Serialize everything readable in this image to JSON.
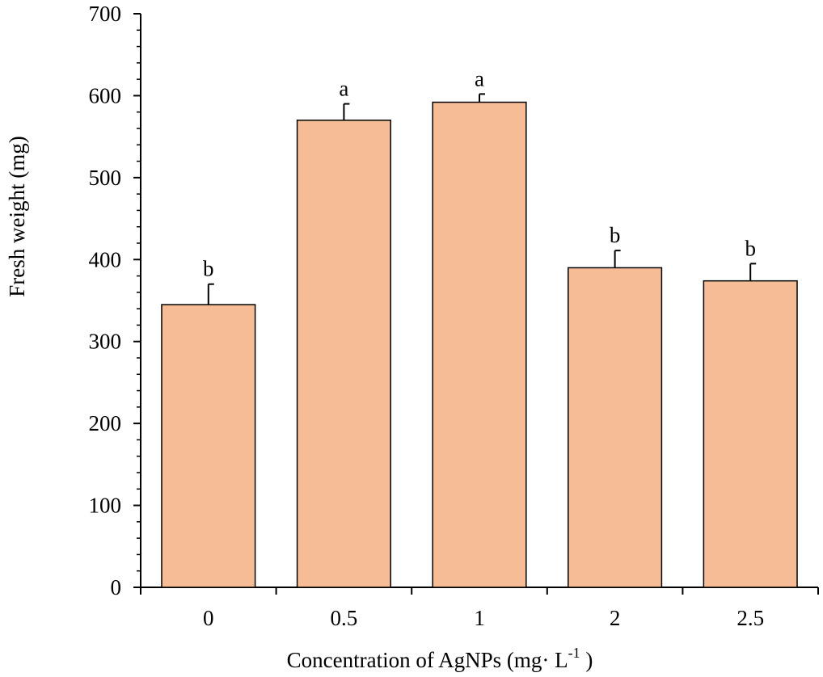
{
  "chart_data": {
    "type": "bar",
    "title": "",
    "xlabel": "Concentration of AgNPs (mg· L",
    "xlabel_sup": "-1",
    "xlabel_end": " )",
    "ylabel": "Fresh weight (mg)",
    "ylim": [
      0,
      700
    ],
    "yticks": [
      "0",
      "100",
      "200",
      "300",
      "400",
      "500",
      "600",
      "700"
    ],
    "categories": [
      "0",
      "0.5",
      "1",
      "2",
      "2.5"
    ],
    "values": [
      345,
      570,
      592,
      390,
      374
    ],
    "errors": [
      25,
      20,
      10,
      21,
      21
    ],
    "significance": [
      "b",
      "a",
      "a",
      "b",
      "b"
    ],
    "bar_color": "#F5BC96",
    "bar_edge_color": "#000000",
    "grid": false
  }
}
